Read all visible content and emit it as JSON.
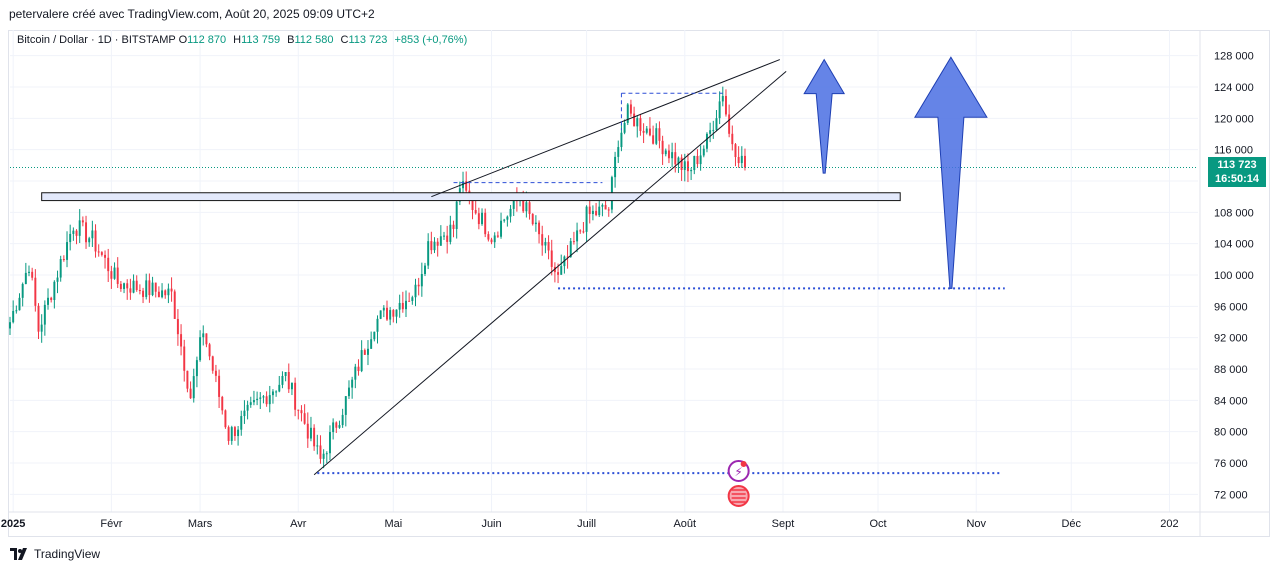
{
  "header": {
    "credit": "petervalere créé avec TradingView.com, Août 20, 2025 09:09 UTC+2"
  },
  "legend": {
    "symbol": "Bitcoin / Dollar · 1D · BITSTAMP",
    "open_label": "O",
    "open": "112 870",
    "high_label": "H",
    "high": "113 759",
    "low_label": "B",
    "low": "112 580",
    "close_label": "C",
    "close": "113 723",
    "change": "+853 (+0,76%)"
  },
  "price_label": {
    "price": "113 723",
    "countdown": "16:50:14"
  },
  "footer": {
    "brand": "TradingView"
  },
  "colors": {
    "up": "#089981",
    "down": "#f23645",
    "annotation_blue": "#4a6fe3",
    "zone_fill": "#e3e9fb",
    "zone_border": "#141414",
    "dotted_level": "#2d4fd6"
  },
  "chart_data": {
    "type": "candlestick",
    "symbol": "BTC/USD",
    "interval": "1D",
    "x_start": "2024-12-31",
    "x_end": "2026-01-10",
    "ylim": [
      70000,
      130000
    ],
    "y_ticks": [
      {
        "value": 72000,
        "label": "72 000"
      },
      {
        "value": 76000,
        "label": "76 000"
      },
      {
        "value": 80000,
        "label": "80 000"
      },
      {
        "value": 84000,
        "label": "84 000"
      },
      {
        "value": 88000,
        "label": "88 000"
      },
      {
        "value": 92000,
        "label": "92 000"
      },
      {
        "value": 96000,
        "label": "96 000"
      },
      {
        "value": 100000,
        "label": "100 000"
      },
      {
        "value": 104000,
        "label": "104 000"
      },
      {
        "value": 108000,
        "label": "108 000"
      },
      {
        "value": 112000,
        "label": "112 000"
      },
      {
        "value": 116000,
        "label": "116 000"
      },
      {
        "value": 120000,
        "label": "120 000"
      },
      {
        "value": 124000,
        "label": "124 000"
      },
      {
        "value": 128000,
        "label": "128 000"
      }
    ],
    "x_ticks": [
      {
        "date": "2025-01-01",
        "label": "2025"
      },
      {
        "date": "2025-02-01",
        "label": "Févr"
      },
      {
        "date": "2025-03-01",
        "label": "Mars"
      },
      {
        "date": "2025-04-01",
        "label": "Avr"
      },
      {
        "date": "2025-05-01",
        "label": "Mai"
      },
      {
        "date": "2025-06-01",
        "label": "Juin"
      },
      {
        "date": "2025-07-01",
        "label": "Juill"
      },
      {
        "date": "2025-08-01",
        "label": "Août"
      },
      {
        "date": "2025-09-01",
        "label": "Sept"
      },
      {
        "date": "2025-10-01",
        "label": "Oct"
      },
      {
        "date": "2025-11-01",
        "label": "Nov"
      },
      {
        "date": "2025-12-01",
        "label": "Déc"
      },
      {
        "date": "2026-01-01",
        "label": "202"
      }
    ],
    "last_close": 113723,
    "anchors": [
      [
        "2024-12-31",
        94000
      ],
      [
        "2025-01-06",
        101500
      ],
      [
        "2025-01-09",
        93000
      ],
      [
        "2025-01-20",
        106500
      ],
      [
        "2025-01-26",
        104500
      ],
      [
        "2025-02-03",
        99000
      ],
      [
        "2025-02-20",
        97500
      ],
      [
        "2025-02-26",
        84500
      ],
      [
        "2025-03-02",
        93000
      ],
      [
        "2025-03-10",
        79500
      ],
      [
        "2025-03-20",
        84000
      ],
      [
        "2025-03-28",
        87000
      ],
      [
        "2025-04-08",
        76300
      ],
      [
        "2025-04-16",
        84000
      ],
      [
        "2025-04-25",
        94000
      ],
      [
        "2025-05-08",
        98000
      ],
      [
        "2025-05-12",
        104000
      ],
      [
        "2025-05-20",
        106000
      ],
      [
        "2025-05-22",
        111500
      ],
      [
        "2025-06-01",
        105000
      ],
      [
        "2025-06-10",
        110000
      ],
      [
        "2025-06-22",
        99500
      ],
      [
        "2025-07-01",
        107500
      ],
      [
        "2025-07-08",
        108500
      ],
      [
        "2025-07-11",
        117500
      ],
      [
        "2025-07-14",
        120500
      ],
      [
        "2025-07-22",
        118000
      ],
      [
        "2025-08-02",
        113000
      ],
      [
        "2025-08-08",
        117000
      ],
      [
        "2025-08-13",
        123500
      ],
      [
        "2025-08-15",
        118000
      ],
      [
        "2025-08-20",
        113723
      ]
    ],
    "annotations": {
      "resistance_zone": {
        "from": "2025-01-10",
        "to": "2025-10-08",
        "top": 110500,
        "bottom": 109500
      },
      "wedge_upper": [
        [
          "2025-05-13",
          110000
        ],
        [
          "2025-08-31",
          127500
        ]
      ],
      "wedge_lower": [
        [
          "2025-04-06",
          74500
        ],
        [
          "2025-09-02",
          126000
        ]
      ],
      "dashed_box_1": {
        "from": "2025-05-20",
        "to": "2025-07-06",
        "price": 111800
      },
      "dashed_box_2": {
        "from": "2025-07-12",
        "to": "2025-08-13",
        "price": 123200
      },
      "dotted_support_1": {
        "from": "2025-06-22",
        "to": "2025-11-10",
        "price": 98300
      },
      "dotted_support_2": {
        "from": "2025-04-07",
        "to": "2025-11-09",
        "price": 74700
      },
      "arrow_small": {
        "date": "2025-09-14",
        "from": 113000,
        "to": 127500
      },
      "arrow_large": {
        "date": "2025-10-24",
        "from": 98300,
        "to": 127800
      },
      "event_icons": {
        "date": "2025-08-18"
      },
      "last_price_line": 113723
    }
  }
}
